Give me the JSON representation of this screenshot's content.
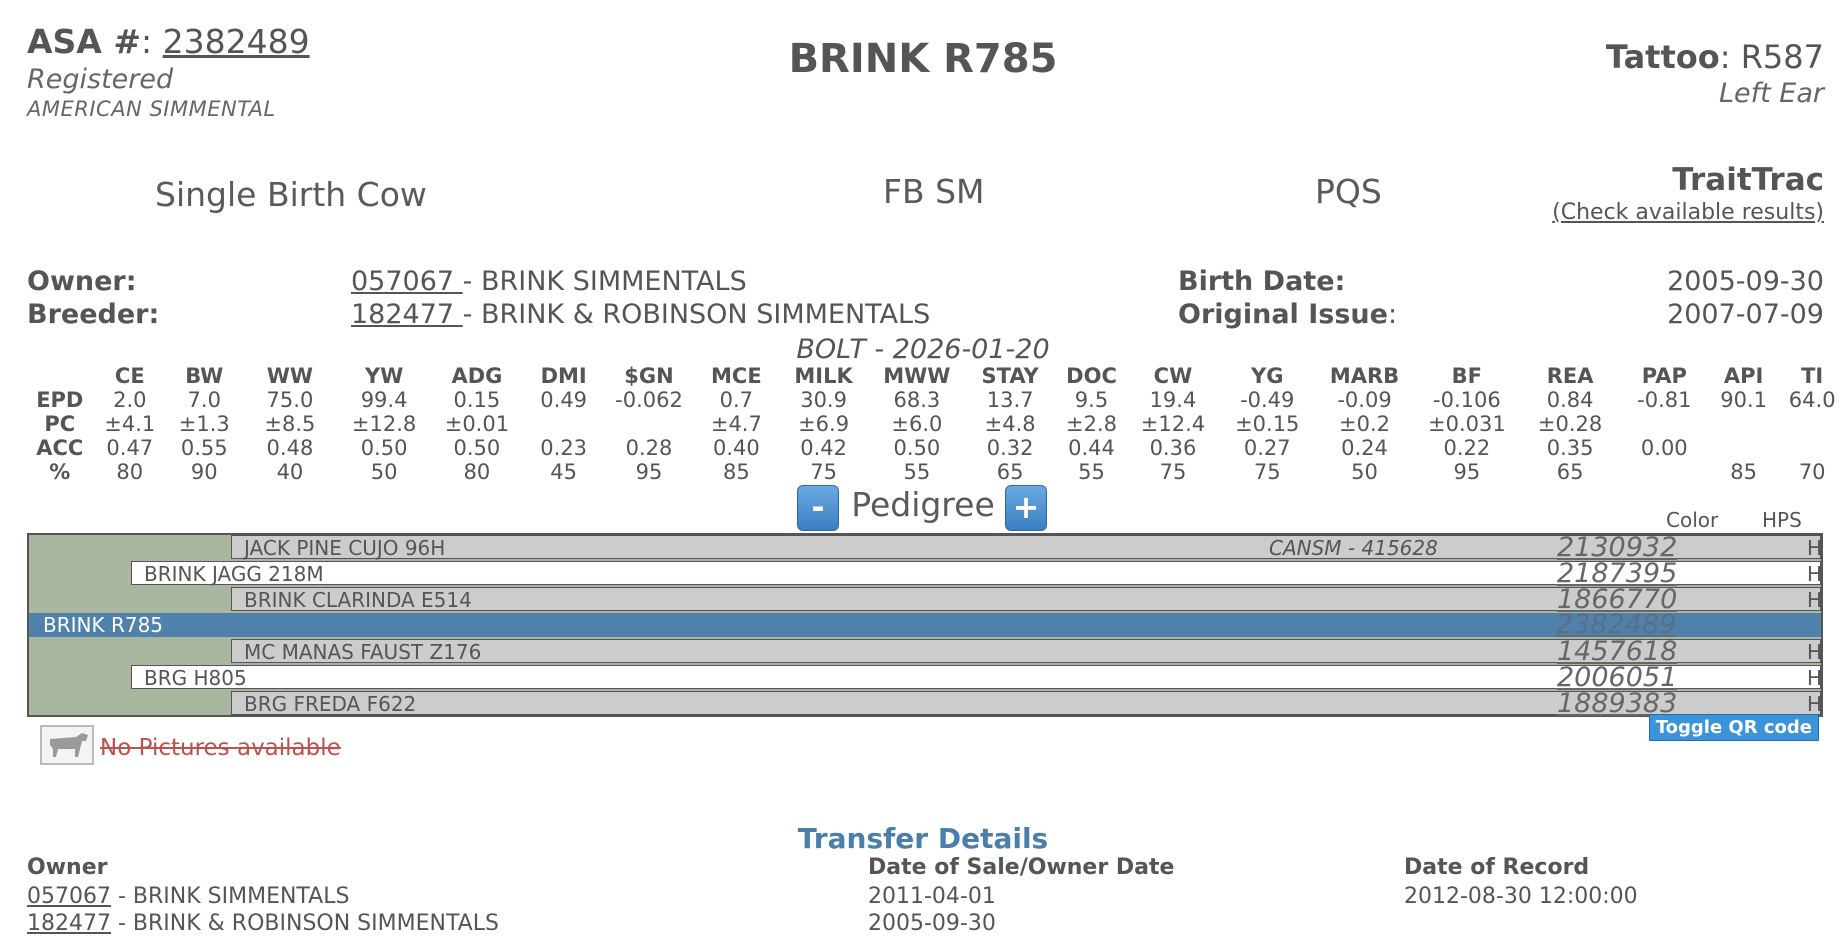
{
  "header": {
    "asa_label": "ASA #",
    "asa_number": "2382489",
    "registered": "Registered",
    "breed_assoc": "AMERICAN SIMMENTAL",
    "animal_name": "BRINK R785",
    "tattoo_label": "Tattoo",
    "tattoo_value": "R587",
    "tattoo_location": "Left Ear"
  },
  "summary": {
    "birth_type": "Single Birth Cow",
    "breed_code": "FB SM",
    "pqs": "PQS",
    "traittrac_title": "TraitTrac",
    "traittrac_link": "(Check available results)"
  },
  "details": {
    "owner_label": "Owner:",
    "owner_id": "057067 ",
    "owner_name": "- BRINK SIMMENTALS",
    "breeder_label": "Breeder:",
    "breeder_id": "182477 ",
    "breeder_name": "- BRINK & ROBINSON SIMMENTALS",
    "birth_date_label": "Birth Date:",
    "birth_date": "2005-09-30",
    "original_issue_label": "Original Issue",
    "original_issue": "2007-07-09",
    "bolt_line": "BOLT - 2026-01-20"
  },
  "epd": {
    "headers": [
      "CE",
      "BW",
      "WW",
      "YW",
      "ADG",
      "DMI",
      "$GN",
      "MCE",
      "MILK",
      "MWW",
      "STAY",
      "DOC",
      "CW",
      "YG",
      "MARB",
      "BF",
      "REA",
      "PAP",
      "API",
      "TI"
    ],
    "rows": [
      {
        "label": "EPD",
        "values": [
          "2.0",
          "7.0",
          "75.0",
          "99.4",
          "0.15",
          "0.49",
          "-0.062",
          "0.7",
          "30.9",
          "68.3",
          "13.7",
          "9.5",
          "19.4",
          "-0.49",
          "-0.09",
          "-0.106",
          "0.84",
          "-0.81",
          "90.1",
          "64.0"
        ]
      },
      {
        "label": "PC",
        "values": [
          "±4.1",
          "±1.3",
          "±8.5",
          "±12.8",
          "±0.01",
          "",
          "",
          "±4.7",
          "±6.9",
          "±6.0",
          "±4.8",
          "±2.8",
          "±12.4",
          "±0.15",
          "±0.2",
          "±0.031",
          "±0.28",
          "",
          "",
          ""
        ]
      },
      {
        "label": "ACC",
        "values": [
          "0.47",
          "0.55",
          "0.48",
          "0.50",
          "0.50",
          "0.23",
          "0.28",
          "0.40",
          "0.42",
          "0.50",
          "0.32",
          "0.44",
          "0.36",
          "0.27",
          "0.24",
          "0.22",
          "0.35",
          "0.00",
          "",
          ""
        ]
      },
      {
        "label": "%",
        "values": [
          "80",
          "90",
          "40",
          "50",
          "80",
          "45",
          "95",
          "85",
          "75",
          "55",
          "65",
          "55",
          "75",
          "75",
          "50",
          "95",
          "65",
          "",
          "85",
          "70"
        ]
      }
    ]
  },
  "pedigree": {
    "title": "Pedigree",
    "minus": "-",
    "plus": "+",
    "color_header": "Color",
    "hps_header": "HPS",
    "rows": [
      {
        "name": "JACK PINE CUJO 96H",
        "ext": "CANSM - 415628",
        "reg": "2130932",
        "hps": "H"
      },
      {
        "name": "BRINK JAGG 218M",
        "ext": "",
        "reg": "2187395",
        "hps": "H"
      },
      {
        "name": "BRINK CLARINDA E514",
        "ext": "",
        "reg": "1866770",
        "hps": "H"
      },
      {
        "name": "BRINK R785",
        "ext": "",
        "reg": "2382489",
        "hps": ""
      },
      {
        "name": "MC MANAS FAUST Z176",
        "ext": "",
        "reg": "1457618",
        "hps": "H"
      },
      {
        "name": "BRG H805",
        "ext": "",
        "reg": "2006051",
        "hps": "H"
      },
      {
        "name": "BRG FREDA F622",
        "ext": "",
        "reg": "1889383",
        "hps": "H"
      }
    ],
    "toggle_qr": "Toggle QR code"
  },
  "pictures": {
    "icon": "cow-icon",
    "text": "No Pictures available"
  },
  "transfer": {
    "title": "Transfer Details",
    "col_owner": "Owner",
    "col_sale": "Date of Sale/Owner Date",
    "col_record": "Date of Record",
    "rows": [
      {
        "owner_id": "057067",
        "owner_name": " - BRINK SIMMENTALS",
        "sale_date": "2011-04-01",
        "record_date": "2012-08-30 12:00:00"
      },
      {
        "owner_id": "182477",
        "owner_name": " - BRINK & ROBINSON SIMMENTALS",
        "sale_date": "2005-09-30",
        "record_date": ""
      }
    ]
  }
}
